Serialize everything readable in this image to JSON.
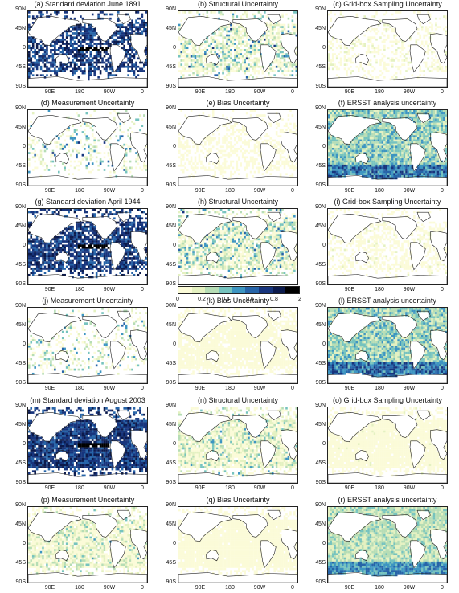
{
  "panels": [
    {
      "title": "(a) Standard deviation June 1891",
      "kind": "sd",
      "intensity": 0.85,
      "coverage": 0.7
    },
    {
      "title": "(b) Structural Uncertainty",
      "kind": "structural",
      "intensity": 0.45,
      "coverage": 0.72
    },
    {
      "title": "(c) Grid-box Sampling Uncertainty",
      "kind": "sampling",
      "intensity": 0.15,
      "coverage": 0.35
    },
    {
      "title": "(d) Measurement Uncertainty",
      "kind": "measurement",
      "intensity": 0.5,
      "coverage": 0.25
    },
    {
      "title": "(e) Bias Uncertainty",
      "kind": "bias",
      "intensity": 0.05,
      "coverage": 0.45
    },
    {
      "title": "(f) ERSST analysis uncertainty",
      "kind": "ersst",
      "intensity": 0.5,
      "coverage": 1.0
    },
    {
      "title": "(g) Standard deviation April 1944",
      "kind": "sd",
      "intensity": 0.85,
      "coverage": 0.82
    },
    {
      "title": "(h) Structural Uncertainty",
      "kind": "structural",
      "intensity": 0.45,
      "coverage": 0.85
    },
    {
      "title": "(i) Grid-box Sampling Uncertainty",
      "kind": "sampling",
      "intensity": 0.1,
      "coverage": 0.45
    },
    {
      "title": "(j) Measurement Uncertainty",
      "kind": "measurement",
      "intensity": 0.45,
      "coverage": 0.3
    },
    {
      "title": "(k) Bias Uncertainty",
      "kind": "bias",
      "intensity": 0.05,
      "coverage": 0.85
    },
    {
      "title": "(l) ERSST analysis uncertainty",
      "kind": "ersst",
      "intensity": 0.5,
      "coverage": 1.0
    },
    {
      "title": "(m) Standard deviation August 2003",
      "kind": "sd",
      "intensity": 0.85,
      "coverage": 0.95
    },
    {
      "title": "(n) Structural Uncertainty",
      "kind": "structural",
      "intensity": 0.35,
      "coverage": 0.95
    },
    {
      "title": "(o) Grid-box Sampling Uncertainty",
      "kind": "sampling",
      "intensity": 0.08,
      "coverage": 0.95
    },
    {
      "title": "(p) Measurement Uncertainty",
      "kind": "measurement",
      "intensity": 0.3,
      "coverage": 0.9
    },
    {
      "title": "(q) Bias Uncertainty",
      "kind": "bias",
      "intensity": 0.04,
      "coverage": 0.95
    },
    {
      "title": "(r) ERSST analysis uncertainty",
      "kind": "ersst",
      "intensity": 0.4,
      "coverage": 1.0
    }
  ],
  "y_tick_labels": [
    "90N",
    "45N",
    "0",
    "45S",
    "90S"
  ],
  "x_tick_labels": [
    "90E",
    "180",
    "90W",
    "0"
  ],
  "colorbar": {
    "ticks": [
      "0",
      "0.2",
      "0.4",
      "0.6",
      "0.8",
      "2"
    ],
    "colors": [
      "#fbfbd8",
      "#e4f1c1",
      "#b6ddb5",
      "#76c3be",
      "#3d95c1",
      "#2664a8",
      "#17357d",
      "#0b1a4c",
      "#000000"
    ]
  },
  "chart_data": {
    "type": "heatmap",
    "description": "global SST uncertainty maps",
    "colorbar_ticks": [
      0,
      0.2,
      0.4,
      0.6,
      0.8,
      2
    ]
  }
}
